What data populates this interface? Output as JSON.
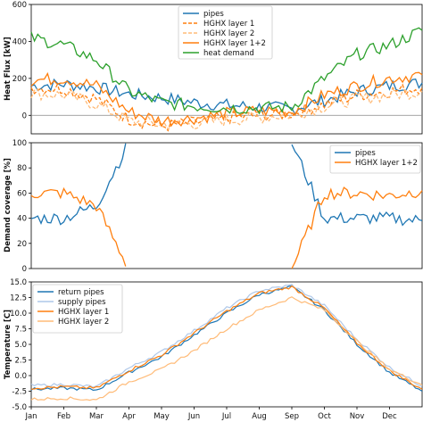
{
  "x_tick_labels": [
    "Jan",
    "Feb",
    "Mar",
    "Apr",
    "May",
    "Jun",
    "Jul",
    "Aug",
    "Sep",
    "Oct",
    "Nov",
    "Dec"
  ],
  "colors": {
    "pipes": "#1f77b4",
    "hghx": "#ff7f0e",
    "hghx_light": "#ffbb78",
    "supply_pipes": "#aec7e8",
    "heat_demand": "#2ca02c"
  },
  "chart_data": [
    {
      "type": "line",
      "ylabel": "Heat Flux [kW]",
      "ylim": [
        -100,
        600
      ],
      "yticks": [
        0,
        200,
        400,
        600
      ],
      "grid": false,
      "zero_line": true,
      "legend_position": "top-center",
      "x": [
        "Jan",
        "Feb",
        "Mar",
        "Apr",
        "May",
        "Jun",
        "Jul",
        "Aug",
        "Sep",
        "Oct",
        "Nov",
        "Dec",
        "Dec end"
      ],
      "series": [
        {
          "name": "pipes",
          "style": "solid",
          "color_key": "pipes",
          "values": [
            160,
            170,
            150,
            115,
            95,
            70,
            55,
            45,
            35,
            80,
            130,
            160,
            175
          ]
        },
        {
          "name": "HGHX layer 1",
          "style": "dashed",
          "color_key": "hghx",
          "values": [
            150,
            145,
            90,
            -20,
            -60,
            -40,
            -15,
            0,
            10,
            60,
            110,
            130,
            150
          ]
        },
        {
          "name": "HGHX layer 2",
          "style": "dashed",
          "color_key": "hghx_light",
          "values": [
            120,
            110,
            60,
            -30,
            -50,
            -45,
            -25,
            -10,
            5,
            50,
            90,
            110,
            130
          ]
        },
        {
          "name": "HGHX layer 1+2",
          "style": "solid",
          "color_key": "hghx",
          "values": [
            190,
            200,
            160,
            20,
            -30,
            -15,
            10,
            25,
            20,
            110,
            160,
            200,
            220
          ]
        },
        {
          "name": "heat demand",
          "style": "solid",
          "color_key": "heat_demand",
          "values": [
            420,
            380,
            300,
            130,
            70,
            50,
            40,
            40,
            45,
            200,
            330,
            380,
            460
          ]
        }
      ]
    },
    {
      "type": "line",
      "ylabel": "Demand coverage [%]",
      "ylim": [
        0,
        100
      ],
      "yticks": [
        0,
        20,
        40,
        60,
        80,
        100
      ],
      "grid": false,
      "legend_position": "top-right",
      "x": [
        "Jan",
        "Feb",
        "Mar",
        "Apr",
        "May",
        "Jun",
        "Jul",
        "Aug",
        "Sep",
        "Oct",
        "Nov",
        "Dec",
        "Dec end"
      ],
      "series": [
        {
          "name": "pipes",
          "color_key": "pipes",
          "values": [
            40,
            40,
            50,
            100,
            null,
            null,
            null,
            null,
            100,
            40,
            40,
            40,
            38
          ]
        },
        {
          "name": "HGHX layer 1+2",
          "color_key": "hghx",
          "values": [
            60,
            60,
            50,
            0,
            null,
            null,
            null,
            null,
            0,
            60,
            60,
            58,
            62
          ]
        }
      ]
    },
    {
      "type": "line",
      "ylabel": "Temperature [C]",
      "ylim": [
        -5,
        15
      ],
      "yticks": [
        -5.0,
        -2.5,
        0.0,
        2.5,
        5.0,
        7.5,
        10.0,
        12.5,
        15.0
      ],
      "grid": false,
      "legend_position": "top-left",
      "x": [
        "Jan",
        "Feb",
        "Mar",
        "Apr",
        "May",
        "Jun",
        "Jul",
        "Aug",
        "Sep",
        "Oct",
        "Nov",
        "Dec",
        "Dec end"
      ],
      "series": [
        {
          "name": "return pipes",
          "color_key": "pipes",
          "values": [
            -2.2,
            -2.0,
            -2.3,
            0.5,
            3.0,
            6.5,
            10.0,
            13.0,
            14.2,
            10.5,
            5.0,
            0.5,
            -2.5
          ]
        },
        {
          "name": "supply pipes",
          "color_key": "supply_pipes",
          "values": [
            -1.6,
            -1.4,
            -1.8,
            1.2,
            3.8,
            7.2,
            10.8,
            13.6,
            14.5,
            11.2,
            5.8,
            1.3,
            -1.7
          ]
        },
        {
          "name": "HGHX layer 1",
          "color_key": "hghx",
          "values": [
            -2.0,
            -1.8,
            -2.0,
            0.8,
            3.3,
            6.8,
            10.3,
            13.2,
            14.2,
            10.8,
            5.2,
            0.8,
            -2.2
          ]
        },
        {
          "name": "HGHX layer 2",
          "color_key": "hghx_light",
          "values": [
            -3.8,
            -3.6,
            -3.9,
            -1.0,
            1.0,
            4.0,
            7.5,
            10.5,
            12.5,
            10.5,
            5.5,
            1.0,
            -1.5
          ]
        }
      ]
    }
  ]
}
